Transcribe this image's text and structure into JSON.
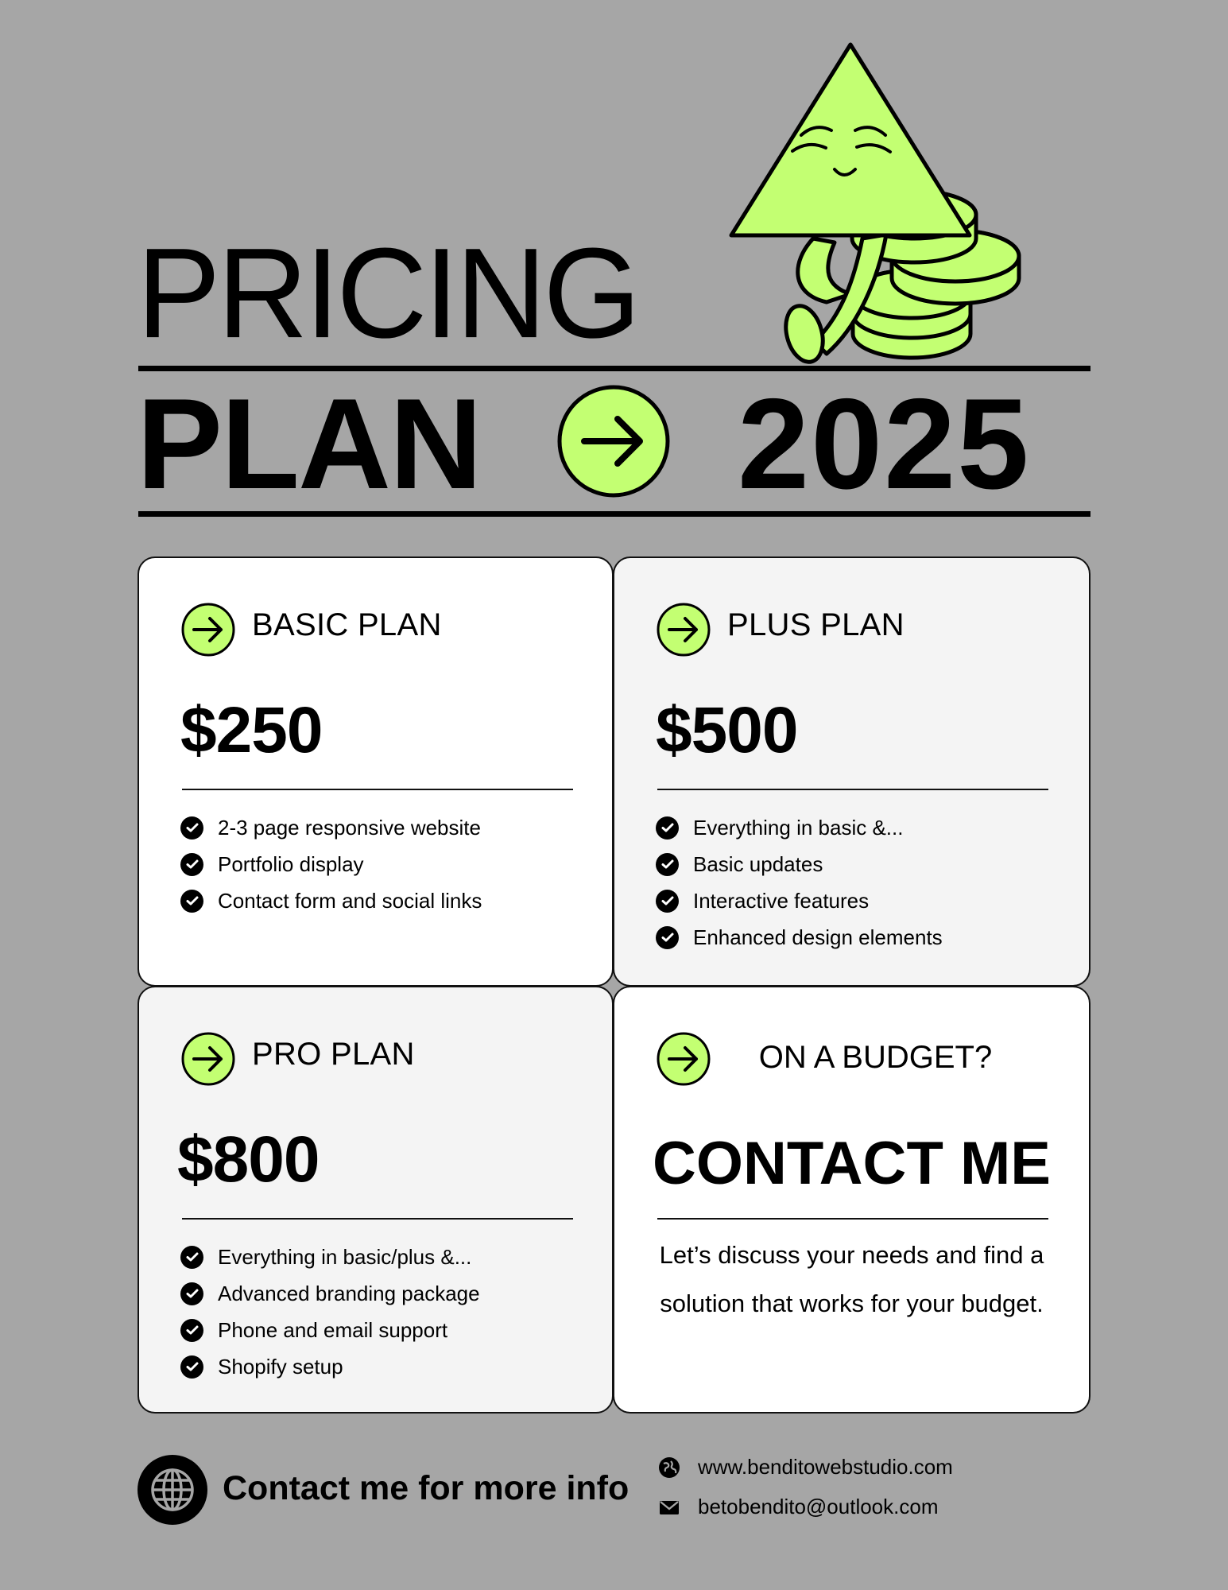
{
  "header": {
    "title_top": "PRICING",
    "title_left": "PLAN",
    "title_right": "2025"
  },
  "colors": {
    "background": "#a6a6a6",
    "accent": "#c3ff72",
    "ink": "#000000",
    "card_white": "#ffffff",
    "card_grey": "#f4f4f4"
  },
  "plans": [
    {
      "name": "BASIC PLAN",
      "price": "$250",
      "features": [
        "2-3 page responsive website",
        "Portfolio display",
        "Contact form and social links"
      ]
    },
    {
      "name": "PLUS PLAN",
      "price": "$500",
      "features": [
        "Everything in basic &...",
        "Basic updates",
        "Interactive features",
        "Enhanced design elements"
      ]
    },
    {
      "name": "PRO PLAN",
      "price": "$800",
      "features": [
        "Everything in basic/plus &...",
        "Advanced branding package",
        "Phone and email support",
        "Shopify setup"
      ]
    }
  ],
  "budget": {
    "title": "ON A BUDGET?",
    "cta": "CONTACT ME",
    "text": "Let’s discuss your needs and find a solution that works for your budget."
  },
  "footer": {
    "cta": "Contact me for more info",
    "website": "www.benditowebstudio.com",
    "email": "betobendito@outlook.com"
  },
  "icons": {
    "mascot": "smiling-triangle-with-coins-icon",
    "arrow": "arrow-right-circle-icon",
    "check": "check-circle-icon",
    "globe": "globe-icon",
    "web": "web-icon",
    "mail": "mail-icon"
  }
}
